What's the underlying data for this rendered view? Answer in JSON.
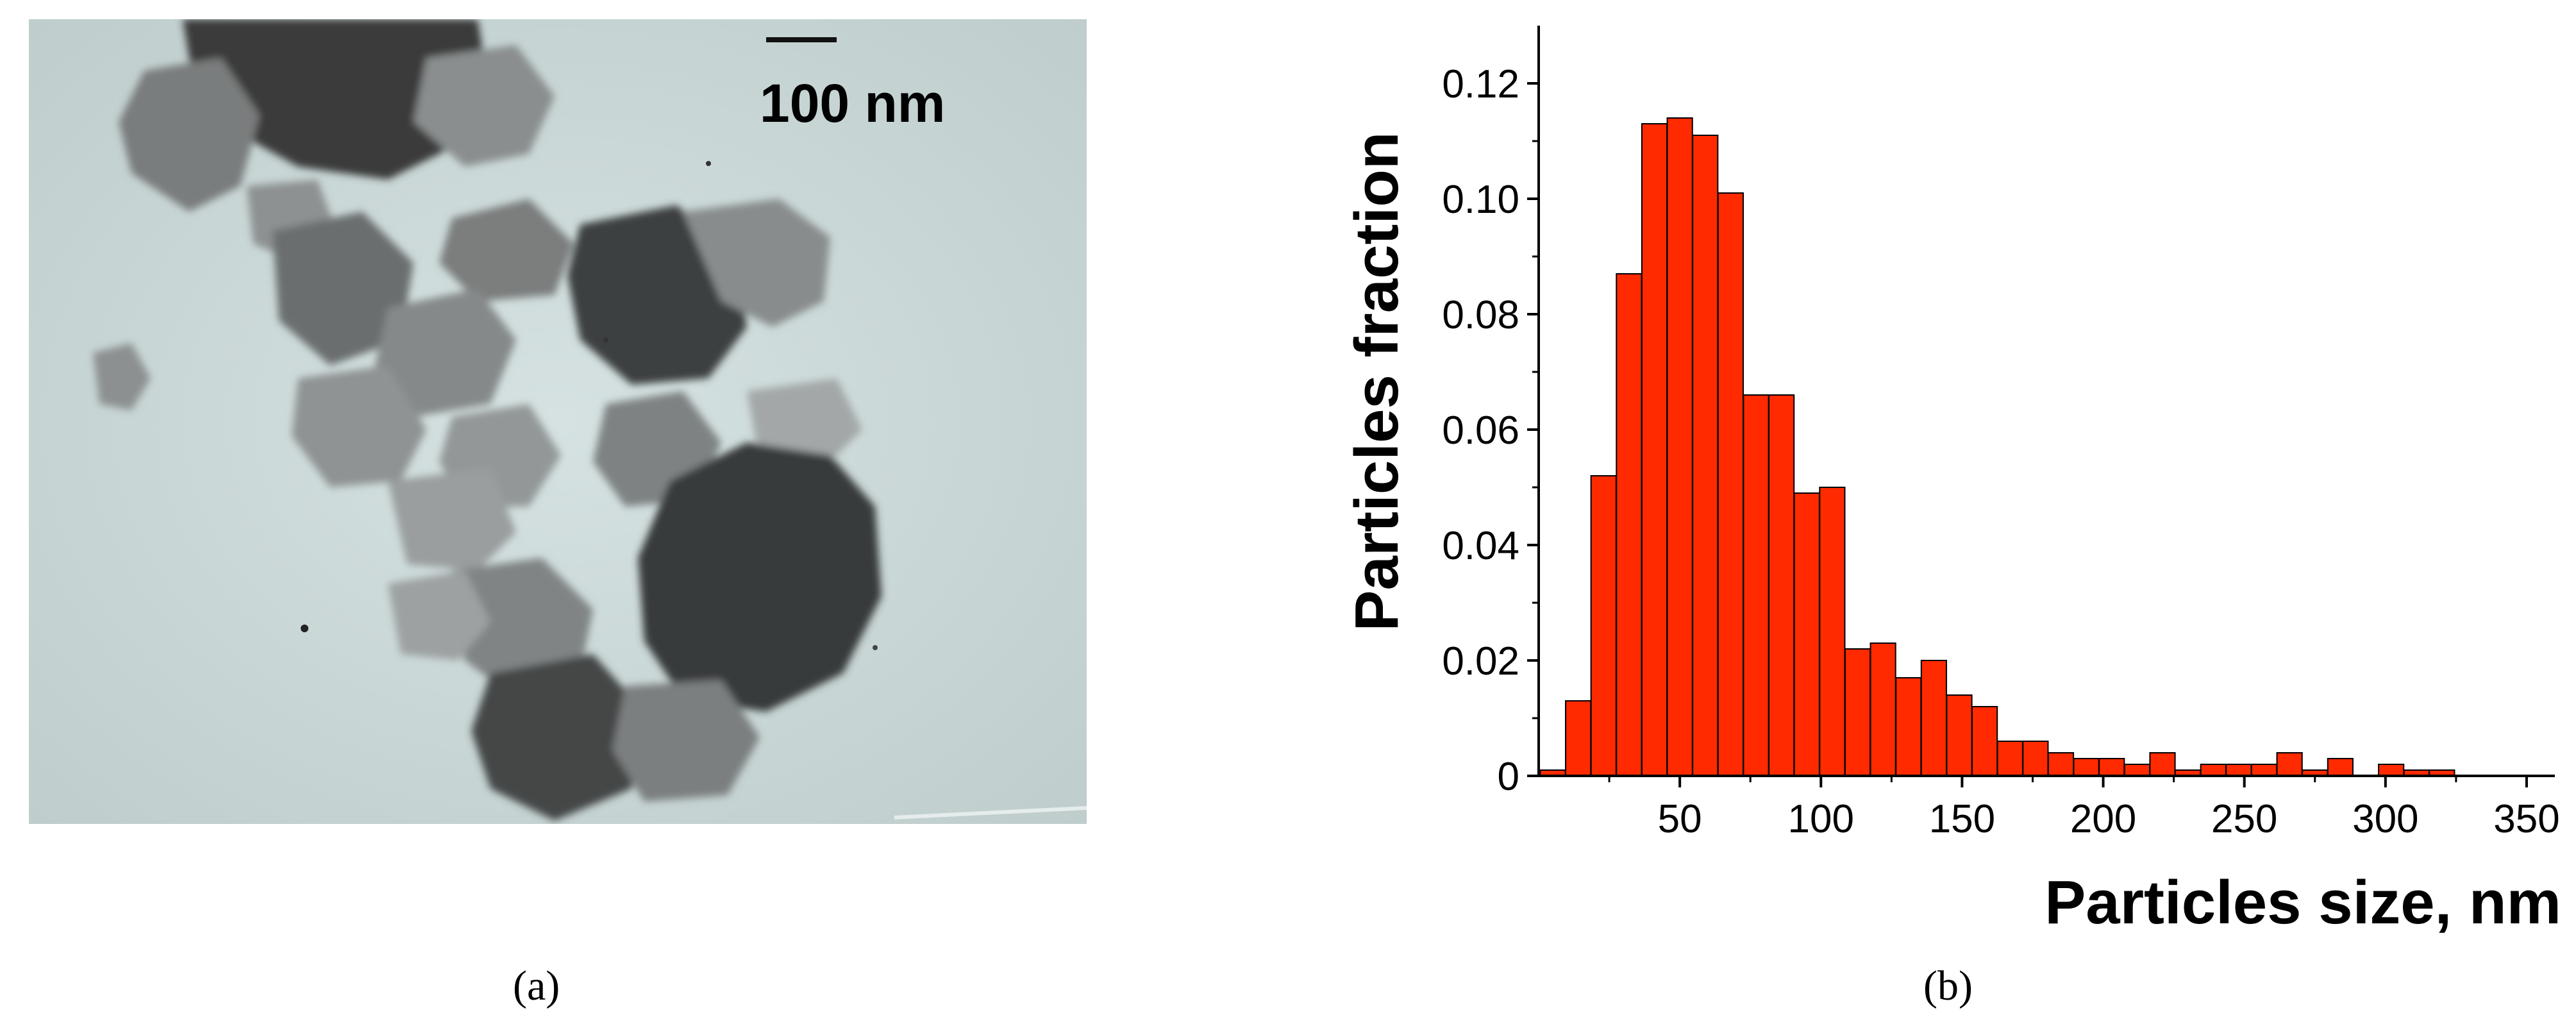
{
  "panels": {
    "a_label": "(a)",
    "b_label": "(b)"
  },
  "micrograph": {
    "scale_bar_label": "100 nm"
  },
  "colors": {
    "bar_fill": "#ff2a00",
    "bar_stroke": "#000000",
    "axis": "#000000",
    "photo_background": "#c9d6d6",
    "particle_dark": "#3b3b3b",
    "particle_mid": "#777a7a"
  },
  "chart_data": {
    "type": "bar",
    "xlabel": "Particles size, nm",
    "ylabel": "Particles fraction",
    "xlim": [
      0,
      360
    ],
    "ylim": [
      0,
      0.13
    ],
    "xticks": [
      50,
      100,
      150,
      200,
      250,
      300,
      350
    ],
    "yticks": [
      0,
      0.02,
      0.04,
      0.06,
      0.08,
      0.1,
      0.12
    ],
    "ytick_labels": [
      "0",
      "0.02",
      "0.04",
      "0.06",
      "0.08",
      "0.10",
      "0.12"
    ],
    "bin_width": 8.9,
    "x": [
      5,
      14,
      23,
      32,
      41,
      50,
      59,
      68,
      77,
      86,
      95,
      104,
      113,
      122,
      131,
      140,
      149,
      158,
      167,
      176,
      185,
      194,
      203,
      212,
      221,
      230,
      239,
      248,
      257,
      266,
      275,
      284,
      293,
      302,
      311,
      320,
      329,
      338,
      347,
      356
    ],
    "values": [
      0.001,
      0.013,
      0.052,
      0.087,
      0.113,
      0.114,
      0.111,
      0.101,
      0.066,
      0.066,
      0.049,
      0.05,
      0.022,
      0.023,
      0.017,
      0.02,
      0.014,
      0.012,
      0.006,
      0.006,
      0.004,
      0.003,
      0.003,
      0.002,
      0.004,
      0.001,
      0.002,
      0.002,
      0.002,
      0.004,
      0.001,
      0.003,
      0.0,
      0.002,
      0.001,
      0.001,
      0.0,
      0.0,
      0.0,
      0.0
    ],
    "grid": false,
    "legend": false
  }
}
